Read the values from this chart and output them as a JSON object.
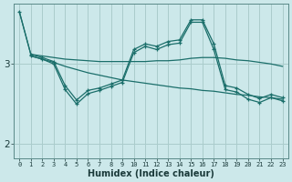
{
  "xlabel": "Humidex (Indice chaleur)",
  "background_color": "#cce8ea",
  "grid_color": "#aacccc",
  "line_color": "#1a6e6a",
  "xlim": [
    -0.5,
    23.5
  ],
  "ylim": [
    1.82,
    3.75
  ],
  "yticks": [
    2,
    3
  ],
  "xticks": [
    0,
    1,
    2,
    3,
    4,
    5,
    6,
    7,
    8,
    9,
    10,
    11,
    12,
    13,
    14,
    15,
    16,
    17,
    18,
    19,
    20,
    21,
    22,
    23
  ],
  "series": [
    {
      "x": [
        0,
        1,
        2,
        3,
        4,
        5,
        6,
        7,
        8,
        9,
        10,
        11,
        12,
        13,
        14,
        15,
        16,
        17,
        18,
        19,
        20,
        21,
        22,
        23
      ],
      "y": [
        3.65,
        3.12,
        3.1,
        3.08,
        3.06,
        3.05,
        3.04,
        3.03,
        3.03,
        3.03,
        3.03,
        3.03,
        3.04,
        3.04,
        3.05,
        3.07,
        3.08,
        3.08,
        3.07,
        3.05,
        3.04,
        3.02,
        3.0,
        2.97
      ],
      "marker": false
    },
    {
      "x": [
        1,
        2,
        3,
        4,
        5,
        6,
        7,
        8,
        9,
        10,
        11,
        12,
        13,
        14,
        15,
        16,
        17,
        18,
        19,
        20,
        21,
        22,
        23
      ],
      "y": [
        3.1,
        3.06,
        3.02,
        2.97,
        2.93,
        2.89,
        2.86,
        2.83,
        2.8,
        2.78,
        2.76,
        2.74,
        2.72,
        2.7,
        2.69,
        2.67,
        2.66,
        2.64,
        2.62,
        2.61,
        2.59,
        2.58,
        2.56
      ],
      "marker": false
    },
    {
      "x": [
        0,
        1,
        2,
        3,
        4,
        5,
        6,
        7,
        8,
        9,
        10,
        11,
        12,
        13,
        14,
        15,
        16,
        17,
        18,
        19,
        20,
        21,
        22,
        23
      ],
      "y": [
        3.65,
        3.12,
        3.08,
        3.03,
        2.73,
        2.55,
        2.67,
        2.7,
        2.75,
        2.8,
        3.18,
        3.25,
        3.22,
        3.28,
        3.3,
        3.55,
        3.55,
        3.25,
        2.73,
        2.7,
        2.62,
        2.57,
        2.62,
        2.58
      ],
      "marker": true
    },
    {
      "x": [
        1,
        2,
        3,
        4,
        5,
        6,
        7,
        8,
        9,
        10,
        11,
        12,
        13,
        14,
        15,
        16,
        17,
        18,
        19,
        20,
        21,
        22,
        23
      ],
      "y": [
        3.1,
        3.06,
        3.0,
        2.68,
        2.5,
        2.63,
        2.67,
        2.72,
        2.77,
        3.14,
        3.22,
        3.18,
        3.24,
        3.26,
        3.52,
        3.52,
        3.18,
        2.68,
        2.65,
        2.56,
        2.52,
        2.58,
        2.54
      ],
      "marker": true
    }
  ]
}
